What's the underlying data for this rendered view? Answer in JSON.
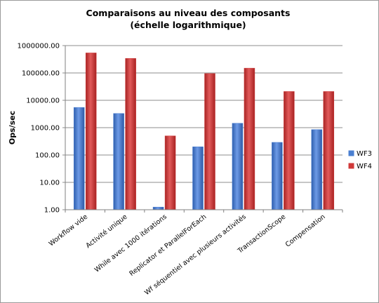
{
  "chart_data": {
    "type": "bar",
    "title": "Comparaisons au niveau des composants",
    "subtitle": "(échelle logarithmique)",
    "xlabel": "",
    "ylabel": "Ops/sec",
    "yscale": "log",
    "ylim": [
      1,
      1000000
    ],
    "yticks": [
      "1.00",
      "10.00",
      "100.00",
      "1000.00",
      "10000.00",
      "100000.00",
      "1000000.00"
    ],
    "grid": "horizontal",
    "legend_position": "right",
    "categories": [
      "Workflow vide",
      "Activité unique",
      "While avec 1000 itérations",
      "Replicator et ParallelForEach",
      "Wf séquentiel avec plusieurs activités",
      "TransactionScope",
      "Compensation"
    ],
    "series": [
      {
        "name": "WF3",
        "color": "#4a7fd1",
        "values": [
          5500,
          3300,
          1.25,
          200,
          1450,
          290,
          850
        ]
      },
      {
        "name": "WF4",
        "color": "#d03a3a",
        "values": [
          540000,
          340000,
          500,
          95000,
          150000,
          21000,
          21000
        ]
      }
    ]
  }
}
